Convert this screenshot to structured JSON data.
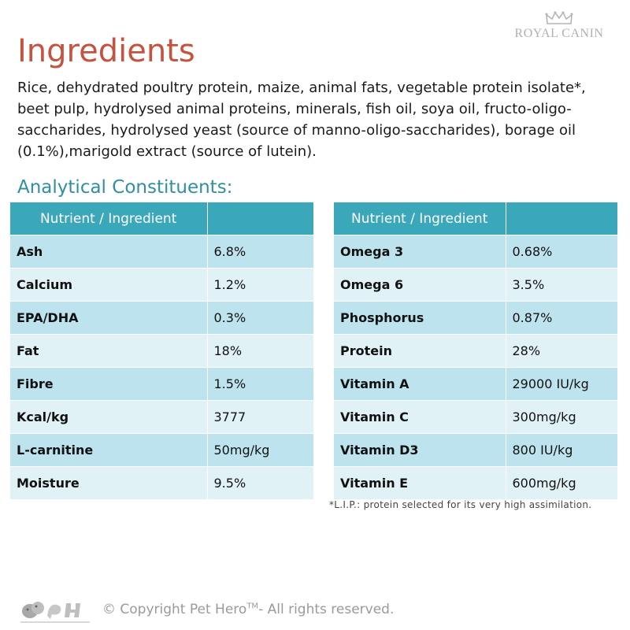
{
  "brand": {
    "text": "ROYAL CANIN",
    "icon": "crown-icon"
  },
  "title": "Ingredients",
  "ingredients_text": "Rice, dehydrated poultry protein, maize, animal fats, vegetable protein isolate*, beet pulp, hydrolysed animal proteins, minerals, fish oil, soya oil, fructo-oligo-saccharides, hydrolysed yeast (source of manno-oligo-saccharides), borage oil (0.1%),marigold extract (source of lutein).",
  "analytical_title": "Analytical Constituents:",
  "table_left": {
    "header": "Nutrient / Ingredient",
    "rows": [
      {
        "name": "Ash",
        "value": "6.8%"
      },
      {
        "name": "Calcium",
        "value": "1.2%"
      },
      {
        "name": "EPA/DHA",
        "value": "0.3%"
      },
      {
        "name": "Fat",
        "value": "18%"
      },
      {
        "name": "Fibre",
        "value": "1.5%"
      },
      {
        "name": "Kcal/kg",
        "value": "3777"
      },
      {
        "name": "L-carnitine",
        "value": "50mg/kg"
      },
      {
        "name": "Moisture",
        "value": "9.5%"
      }
    ]
  },
  "table_right": {
    "header": "Nutrient / Ingredient",
    "rows": [
      {
        "name": "Omega 3",
        "value": "0.68%"
      },
      {
        "name": "Omega 6",
        "value": "3.5%"
      },
      {
        "name": "Phosphorus",
        "value": "0.87%"
      },
      {
        "name": "Protein",
        "value": "28%"
      },
      {
        "name": "Vitamin A",
        "value": "29000 IU/kg"
      },
      {
        "name": "Vitamin C",
        "value": "300mg/kg"
      },
      {
        "name": "Vitamin D3",
        "value": "800 IU/kg"
      },
      {
        "name": "Vitamin E",
        "value": "600mg/kg"
      }
    ]
  },
  "footnote": "*L.I.P.: protein selected for its very high assimilation.",
  "copyright": {
    "prefix": "© Copyright Pet Hero",
    "tm": "TM",
    "suffix": "- All rights reserved."
  },
  "logo": {
    "text": "PetHero",
    "icon": "pet-hero-logo-icon"
  },
  "colors": {
    "title": "#c5533f",
    "accent": "#3aa8ba",
    "row_dark": "#bde4ee",
    "row_light": "#e1f2f6"
  }
}
